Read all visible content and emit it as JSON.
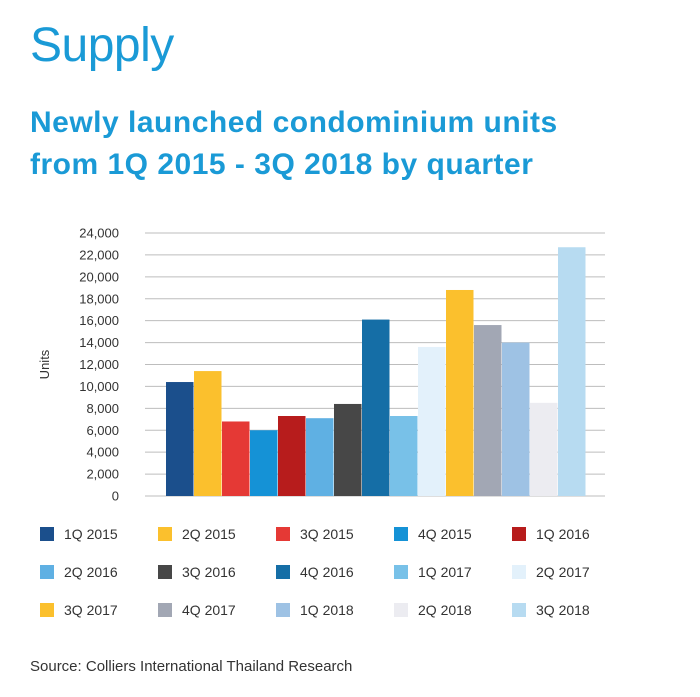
{
  "page": {
    "heading": "Supply",
    "subtitle_line1": "Newly launched condominium units",
    "subtitle_line2": "from 1Q 2015 - 3Q 2018 by quarter",
    "source": "Source: Colliers International Thailand Research"
  },
  "chart_data": {
    "type": "bar",
    "ylabel": "Units",
    "ylim": [
      0,
      24000
    ],
    "yticks": [
      "0",
      "2,000",
      "4,000",
      "6,000",
      "8,000",
      "10,000",
      "12,000",
      "14,000",
      "16,000",
      "18,000",
      "20,000",
      "22,000",
      "24,000"
    ],
    "ytick_values": [
      0,
      2000,
      4000,
      6000,
      8000,
      10000,
      12000,
      14000,
      16000,
      18000,
      20000,
      22000,
      24000
    ],
    "grid": true,
    "legend_position": "bottom",
    "categories": [
      "1Q 2015",
      "2Q 2015",
      "3Q 2015",
      "4Q 2015",
      "1Q 2016",
      "2Q 2016",
      "3Q 2016",
      "4Q 2016",
      "1Q 2017",
      "2Q 2017",
      "3Q 2017",
      "4Q 2017",
      "1Q 2018",
      "2Q 2018",
      "3Q 2018"
    ],
    "values": [
      10400,
      11400,
      6800,
      6000,
      7300,
      7100,
      8400,
      16100,
      7300,
      13600,
      18800,
      15600,
      14000,
      8500,
      22700
    ],
    "colors": [
      "#1b4f8c",
      "#fbc02d",
      "#e53935",
      "#1592d6",
      "#b71c1c",
      "#5fb0e3",
      "#474747",
      "#156ea6",
      "#78c1e8",
      "#e3f1fb",
      "#fbc02d",
      "#a2a7b4",
      "#9ec2e4",
      "#ececf1",
      "#b7dbf1"
    ]
  }
}
